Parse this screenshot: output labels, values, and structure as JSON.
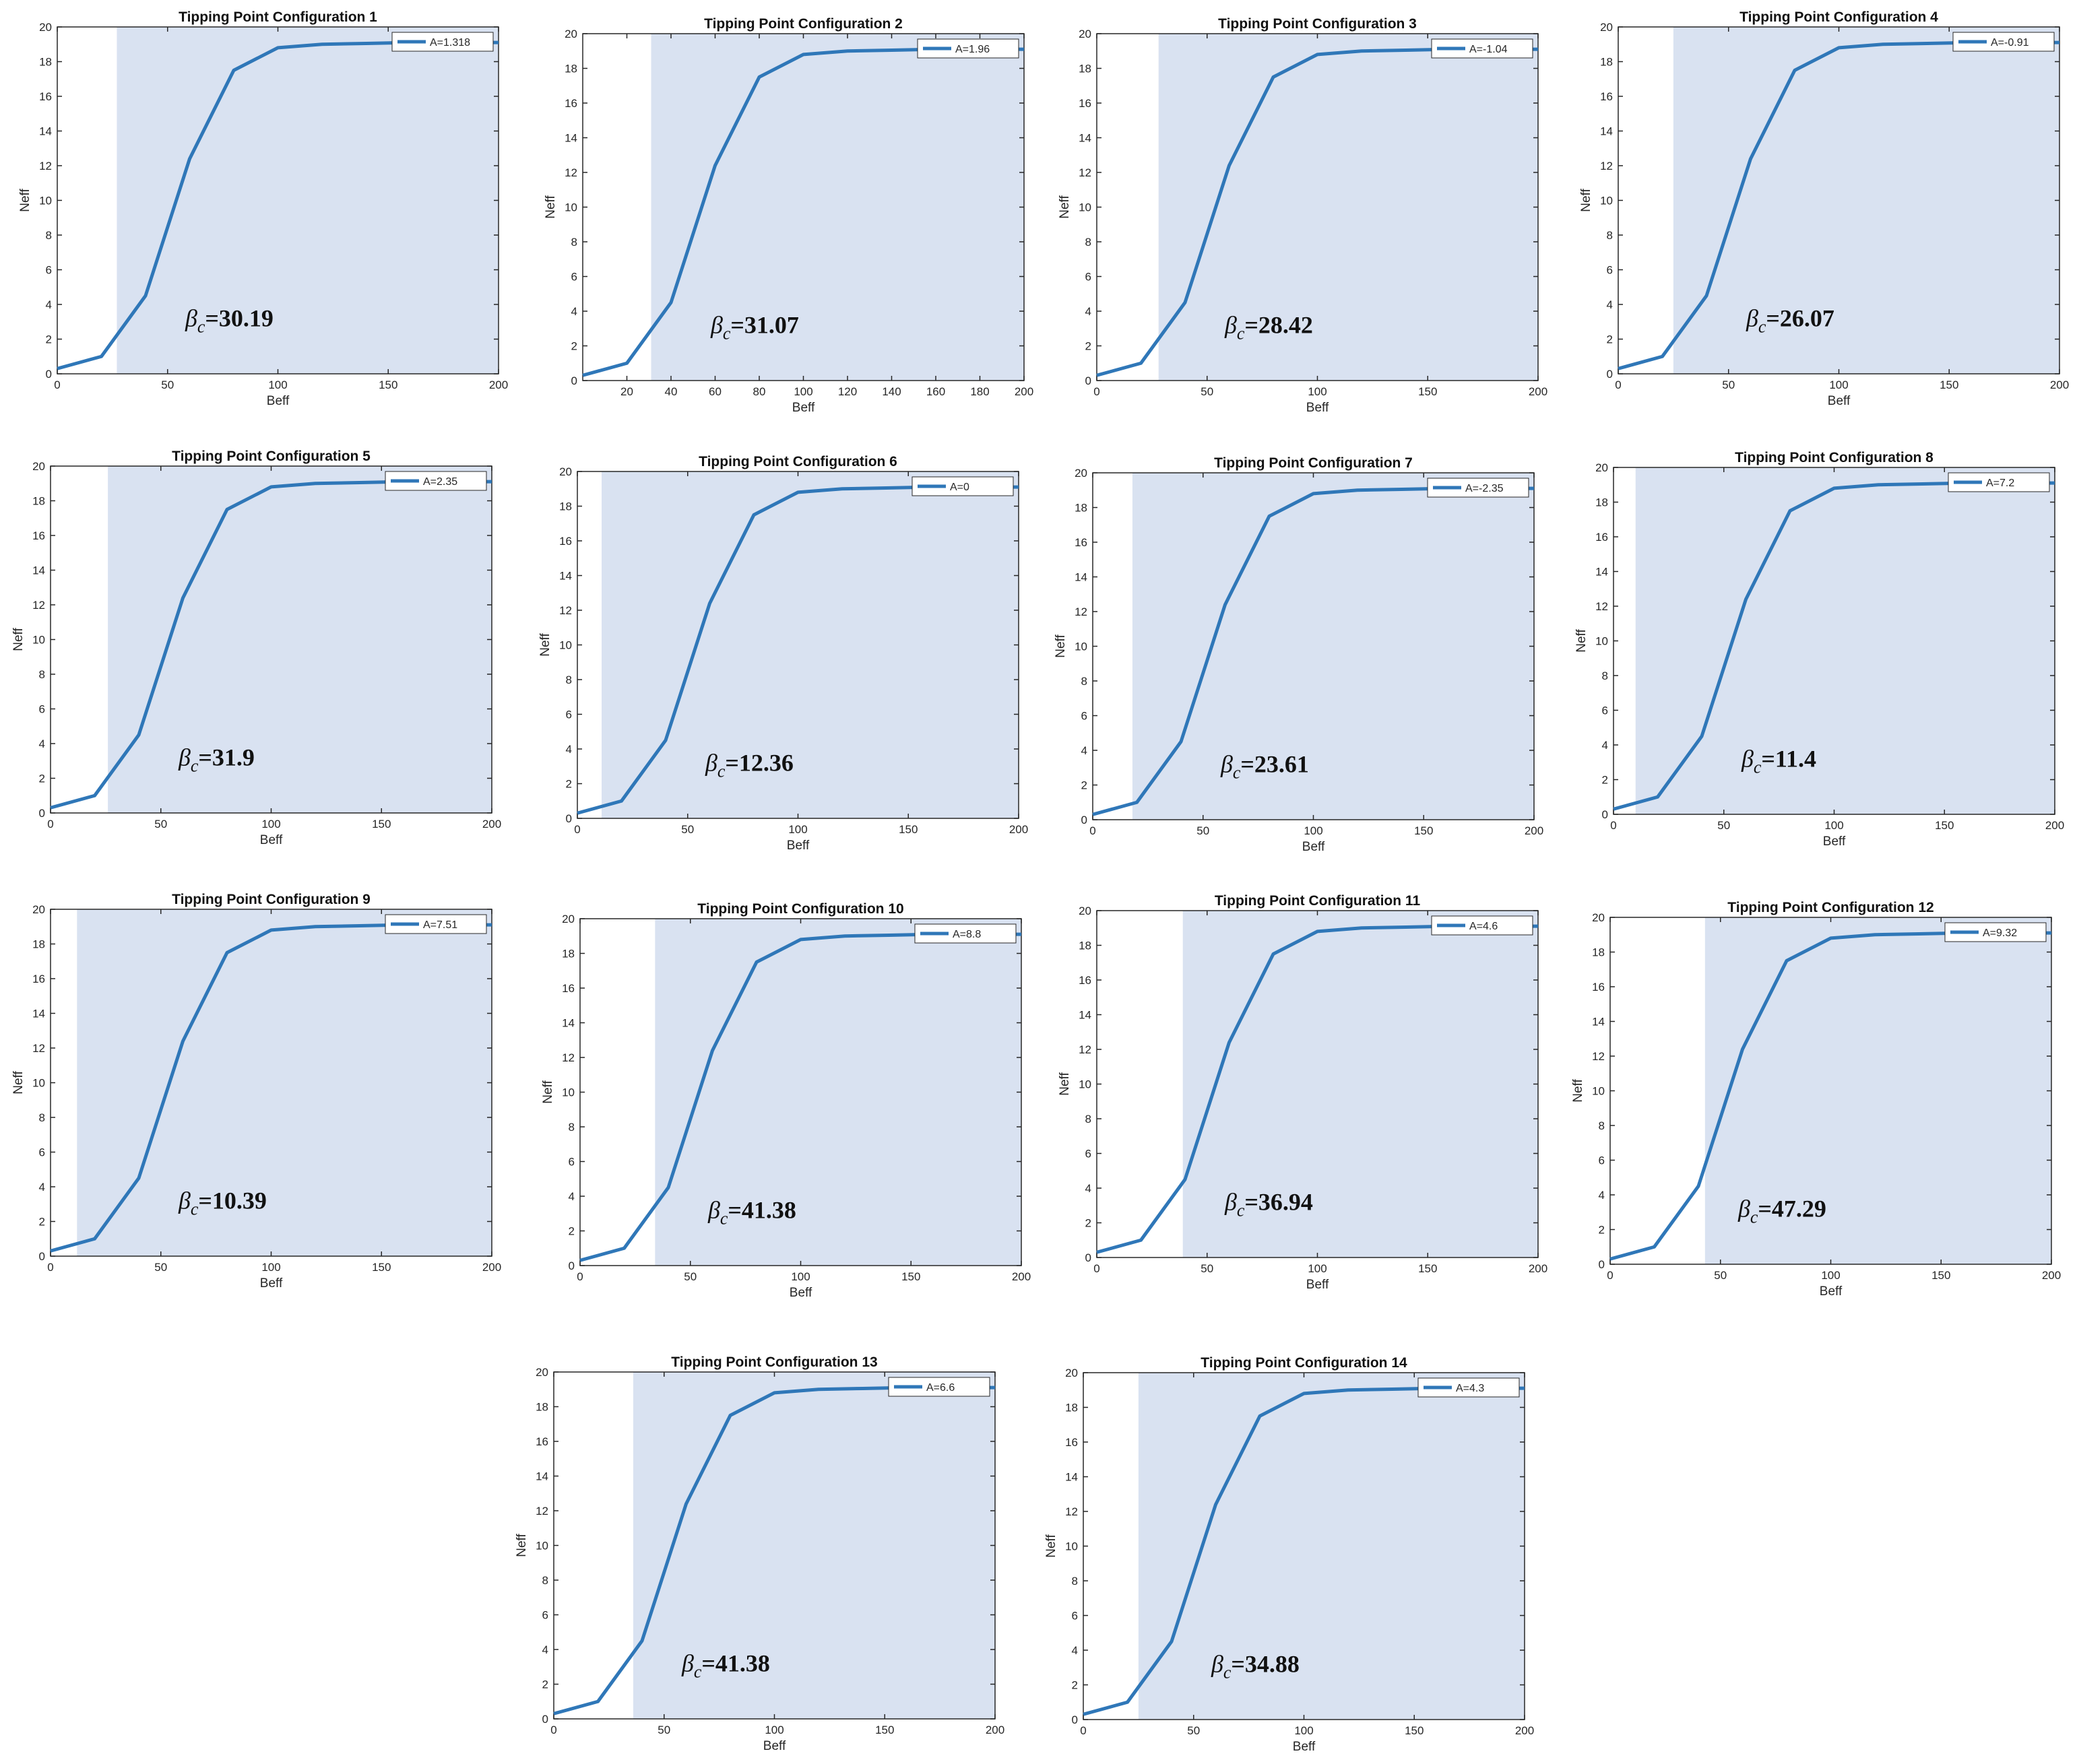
{
  "chart_data": [
    {
      "type": "line",
      "title": "Tipping Point Configuration 1",
      "xlabel": "Beff",
      "ylabel": "Neff",
      "x": [
        0,
        20,
        40,
        60,
        80,
        100,
        120,
        140,
        160,
        180,
        200
      ],
      "series": [
        {
          "name": "A=1.318",
          "color": "#2f77b8",
          "values": [
            0.3,
            1,
            4.5,
            12.4,
            17.5,
            18.8,
            19,
            19.05,
            19.1,
            19.1,
            19.1
          ]
        }
      ],
      "xlim": [
        0,
        200
      ],
      "ylim": [
        0,
        20
      ],
      "xticks": [
        0,
        50,
        100,
        150,
        200
      ],
      "yticks": [
        0,
        2,
        4,
        6,
        8,
        10,
        12,
        14,
        16,
        18,
        20
      ],
      "shade_xlim": [
        27,
        200
      ],
      "annotation": {
        "symbol": "β",
        "subscript": "c",
        "text": "=30.19"
      },
      "legend": "upper right"
    },
    {
      "type": "line",
      "title": "Tipping Point Configuration 2",
      "xlabel": "Beff",
      "ylabel": "Neff",
      "x": [
        0,
        20,
        40,
        60,
        80,
        100,
        120,
        140,
        160,
        180,
        200
      ],
      "series": [
        {
          "name": "A=1.96",
          "color": "#2f77b8",
          "values": [
            0.3,
            1,
            4.5,
            12.4,
            17.5,
            18.8,
            19,
            19.05,
            19.1,
            19.1,
            19.1
          ]
        }
      ],
      "xlim": [
        0,
        200
      ],
      "ylim": [
        0,
        20
      ],
      "xticks": [
        20,
        40,
        60,
        80,
        100,
        120,
        140,
        160,
        180,
        200
      ],
      "yticks": [
        0,
        2,
        4,
        6,
        8,
        10,
        12,
        14,
        16,
        18,
        20
      ],
      "shade_xlim": [
        31,
        200
      ],
      "annotation": {
        "symbol": "β",
        "subscript": "c",
        "text": "=31.07"
      },
      "legend": "upper right"
    },
    {
      "type": "line",
      "title": "Tipping Point Configuration 3",
      "xlabel": "Beff",
      "ylabel": "Neff",
      "x": [
        0,
        20,
        40,
        60,
        80,
        100,
        120,
        140,
        160,
        180,
        200
      ],
      "series": [
        {
          "name": "A=-1.04",
          "color": "#2f77b8",
          "values": [
            0.3,
            1,
            4.5,
            12.4,
            17.5,
            18.8,
            19,
            19.05,
            19.1,
            19.1,
            19.1
          ]
        }
      ],
      "xlim": [
        0,
        200
      ],
      "ylim": [
        0,
        20
      ],
      "xticks": [
        0,
        50,
        100,
        150,
        200
      ],
      "yticks": [
        0,
        2,
        4,
        6,
        8,
        10,
        12,
        14,
        16,
        18,
        20
      ],
      "shade_xlim": [
        28,
        200
      ],
      "annotation": {
        "symbol": "β",
        "subscript": "c",
        "text": "=28.42"
      },
      "legend": "upper right"
    },
    {
      "type": "line",
      "title": "Tipping Point Configuration 4",
      "xlabel": "Beff",
      "ylabel": "Neff",
      "x": [
        0,
        20,
        40,
        60,
        80,
        100,
        120,
        140,
        160,
        180,
        200
      ],
      "series": [
        {
          "name": "A=-0.91",
          "color": "#2f77b8",
          "values": [
            0.3,
            1,
            4.5,
            12.4,
            17.5,
            18.8,
            19,
            19.05,
            19.1,
            19.1,
            19.1
          ]
        }
      ],
      "xlim": [
        0,
        200
      ],
      "ylim": [
        0,
        20
      ],
      "xticks": [
        0,
        50,
        100,
        150,
        200
      ],
      "yticks": [
        0,
        2,
        4,
        6,
        8,
        10,
        12,
        14,
        16,
        18,
        20
      ],
      "shade_xlim": [
        25,
        200
      ],
      "annotation": {
        "symbol": "β",
        "subscript": "c",
        "text": "=26.07"
      },
      "legend": "upper right"
    },
    {
      "type": "line",
      "title": "Tipping Point Configuration 5",
      "xlabel": "Beff",
      "ylabel": "Neff",
      "x": [
        0,
        20,
        40,
        60,
        80,
        100,
        120,
        140,
        160,
        180,
        200
      ],
      "series": [
        {
          "name": "A=2.35",
          "color": "#2f77b8",
          "values": [
            0.3,
            1,
            4.5,
            12.4,
            17.5,
            18.8,
            19,
            19.05,
            19.1,
            19.1,
            19.1
          ]
        }
      ],
      "xlim": [
        0,
        200
      ],
      "ylim": [
        0,
        20
      ],
      "xticks": [
        0,
        50,
        100,
        150,
        200
      ],
      "yticks": [
        0,
        2,
        4,
        6,
        8,
        10,
        12,
        14,
        16,
        18,
        20
      ],
      "shade_xlim": [
        26,
        200
      ],
      "annotation": {
        "symbol": "β",
        "subscript": "c",
        "text": "=31.9"
      },
      "legend": "upper right"
    },
    {
      "type": "line",
      "title": "Tipping Point Configuration 6",
      "xlabel": "Beff",
      "ylabel": "Neff",
      "x": [
        0,
        20,
        40,
        60,
        80,
        100,
        120,
        140,
        160,
        180,
        200
      ],
      "series": [
        {
          "name": "A=0",
          "color": "#2f77b8",
          "values": [
            0.3,
            1,
            4.5,
            12.4,
            17.5,
            18.8,
            19,
            19.05,
            19.1,
            19.1,
            19.1
          ]
        }
      ],
      "xlim": [
        0,
        200
      ],
      "ylim": [
        0,
        20
      ],
      "xticks": [
        0,
        50,
        100,
        150,
        200
      ],
      "yticks": [
        0,
        2,
        4,
        6,
        8,
        10,
        12,
        14,
        16,
        18,
        20
      ],
      "shade_xlim": [
        11,
        200
      ],
      "annotation": {
        "symbol": "β",
        "subscript": "c",
        "text": "=12.36"
      },
      "legend": "upper right"
    },
    {
      "type": "line",
      "title": "Tipping Point Configuration 7",
      "xlabel": "Beff",
      "ylabel": "Neff",
      "x": [
        0,
        20,
        40,
        60,
        80,
        100,
        120,
        140,
        160,
        180,
        200
      ],
      "series": [
        {
          "name": "A=-2.35",
          "color": "#2f77b8",
          "values": [
            0.3,
            1,
            4.5,
            12.4,
            17.5,
            18.8,
            19,
            19.05,
            19.1,
            19.1,
            19.1
          ]
        }
      ],
      "xlim": [
        0,
        200
      ],
      "ylim": [
        0,
        20
      ],
      "xticks": [
        0,
        50,
        100,
        150,
        200
      ],
      "yticks": [
        0,
        2,
        4,
        6,
        8,
        10,
        12,
        14,
        16,
        18,
        20
      ],
      "shade_xlim": [
        18,
        200
      ],
      "annotation": {
        "symbol": "β",
        "subscript": "c",
        "text": "=23.61"
      },
      "legend": "upper right"
    },
    {
      "type": "line",
      "title": "Tipping Point Configuration 8",
      "xlabel": "Beff",
      "ylabel": "Neff",
      "x": [
        0,
        20,
        40,
        60,
        80,
        100,
        120,
        140,
        160,
        180,
        200
      ],
      "series": [
        {
          "name": "A=7.2",
          "color": "#2f77b8",
          "values": [
            0.3,
            1,
            4.5,
            12.4,
            17.5,
            18.8,
            19,
            19.05,
            19.1,
            19.1,
            19.1
          ]
        }
      ],
      "xlim": [
        0,
        200
      ],
      "ylim": [
        0,
        20
      ],
      "xticks": [
        0,
        50,
        100,
        150,
        200
      ],
      "yticks": [
        0,
        2,
        4,
        6,
        8,
        10,
        12,
        14,
        16,
        18,
        20
      ],
      "shade_xlim": [
        10,
        200
      ],
      "annotation": {
        "symbol": "β",
        "subscript": "c",
        "text": "=11.4"
      },
      "legend": "upper right"
    },
    {
      "type": "line",
      "title": "Tipping Point Configuration 9",
      "xlabel": "Beff",
      "ylabel": "Neff",
      "x": [
        0,
        20,
        40,
        60,
        80,
        100,
        120,
        140,
        160,
        180,
        200
      ],
      "series": [
        {
          "name": "A=7.51",
          "color": "#2f77b8",
          "values": [
            0.3,
            1,
            4.5,
            12.4,
            17.5,
            18.8,
            19,
            19.05,
            19.1,
            19.1,
            19.1
          ]
        }
      ],
      "xlim": [
        0,
        200
      ],
      "ylim": [
        0,
        20
      ],
      "xticks": [
        0,
        50,
        100,
        150,
        200
      ],
      "yticks": [
        0,
        2,
        4,
        6,
        8,
        10,
        12,
        14,
        16,
        18,
        20
      ],
      "shade_xlim": [
        12,
        200
      ],
      "annotation": {
        "symbol": "β",
        "subscript": "c",
        "text": "=10.39"
      },
      "legend": "upper right"
    },
    {
      "type": "line",
      "title": "Tipping Point Configuration 10",
      "xlabel": "Beff",
      "ylabel": "Neff",
      "x": [
        0,
        20,
        40,
        60,
        80,
        100,
        120,
        140,
        160,
        180,
        200
      ],
      "series": [
        {
          "name": "A=8.8",
          "color": "#2f77b8",
          "values": [
            0.3,
            1,
            4.5,
            12.4,
            17.5,
            18.8,
            19,
            19.05,
            19.1,
            19.1,
            19.1
          ]
        }
      ],
      "xlim": [
        0,
        200
      ],
      "ylim": [
        0,
        20
      ],
      "xticks": [
        0,
        50,
        100,
        150,
        200
      ],
      "yticks": [
        0,
        2,
        4,
        6,
        8,
        10,
        12,
        14,
        16,
        18,
        20
      ],
      "shade_xlim": [
        34,
        200
      ],
      "annotation": {
        "symbol": "β",
        "subscript": "c",
        "text": "=41.38"
      },
      "legend": "upper right"
    },
    {
      "type": "line",
      "title": "Tipping Point Configuration 11",
      "xlabel": "Beff",
      "ylabel": "Neff",
      "x": [
        0,
        20,
        40,
        60,
        80,
        100,
        120,
        140,
        160,
        180,
        200
      ],
      "series": [
        {
          "name": "A=4.6",
          "color": "#2f77b8",
          "values": [
            0.3,
            1,
            4.5,
            12.4,
            17.5,
            18.8,
            19,
            19.05,
            19.1,
            19.1,
            19.1
          ]
        }
      ],
      "xlim": [
        0,
        200
      ],
      "ylim": [
        0,
        20
      ],
      "xticks": [
        0,
        50,
        100,
        150,
        200
      ],
      "yticks": [
        0,
        2,
        4,
        6,
        8,
        10,
        12,
        14,
        16,
        18,
        20
      ],
      "shade_xlim": [
        39,
        200
      ],
      "annotation": {
        "symbol": "β",
        "subscript": "c",
        "text": "=36.94"
      },
      "legend": "upper right"
    },
    {
      "type": "line",
      "title": "Tipping Point Configuration 12",
      "xlabel": "Beff",
      "ylabel": "Neff",
      "x": [
        0,
        20,
        40,
        60,
        80,
        100,
        120,
        140,
        160,
        180,
        200
      ],
      "series": [
        {
          "name": "A=9.32",
          "color": "#2f77b8",
          "values": [
            0.3,
            1,
            4.5,
            12.4,
            17.5,
            18.8,
            19,
            19.05,
            19.1,
            19.1,
            19.1
          ]
        }
      ],
      "xlim": [
        0,
        200
      ],
      "ylim": [
        0,
        20
      ],
      "xticks": [
        0,
        50,
        100,
        150,
        200
      ],
      "yticks": [
        0,
        2,
        4,
        6,
        8,
        10,
        12,
        14,
        16,
        18,
        20
      ],
      "shade_xlim": [
        43,
        200
      ],
      "annotation": {
        "symbol": "β",
        "subscript": "c",
        "text": "=47.29"
      },
      "legend": "upper right"
    },
    {
      "type": "line",
      "title": "Tipping Point Configuration 13",
      "xlabel": "Beff",
      "ylabel": "Neff",
      "x": [
        0,
        20,
        40,
        60,
        80,
        100,
        120,
        140,
        160,
        180,
        200
      ],
      "series": [
        {
          "name": "A=6.6",
          "color": "#2f77b8",
          "values": [
            0.3,
            1,
            4.5,
            12.4,
            17.5,
            18.8,
            19,
            19.05,
            19.1,
            19.1,
            19.1
          ]
        }
      ],
      "xlim": [
        0,
        200
      ],
      "ylim": [
        0,
        20
      ],
      "xticks": [
        0,
        50,
        100,
        150,
        200
      ],
      "yticks": [
        0,
        2,
        4,
        6,
        8,
        10,
        12,
        14,
        16,
        18,
        20
      ],
      "shade_xlim": [
        36,
        200
      ],
      "annotation": {
        "symbol": "β",
        "subscript": "c",
        "text": "=41.38"
      },
      "legend": "upper right"
    },
    {
      "type": "line",
      "title": "Tipping Point Configuration 14",
      "xlabel": "Beff",
      "ylabel": "Neff",
      "x": [
        0,
        20,
        40,
        60,
        80,
        100,
        120,
        140,
        160,
        180,
        200
      ],
      "series": [
        {
          "name": "A=4.3",
          "color": "#2f77b8",
          "values": [
            0.3,
            1,
            4.5,
            12.4,
            17.5,
            18.8,
            19,
            19.05,
            19.1,
            19.1,
            19.1
          ]
        }
      ],
      "xlim": [
        0,
        200
      ],
      "ylim": [
        0,
        20
      ],
      "xticks": [
        0,
        50,
        100,
        150,
        200
      ],
      "yticks": [
        0,
        2,
        4,
        6,
        8,
        10,
        12,
        14,
        16,
        18,
        20
      ],
      "shade_xlim": [
        25,
        200
      ],
      "annotation": {
        "symbol": "β",
        "subscript": "c",
        "text": "=34.88"
      },
      "legend": "upper right"
    }
  ]
}
